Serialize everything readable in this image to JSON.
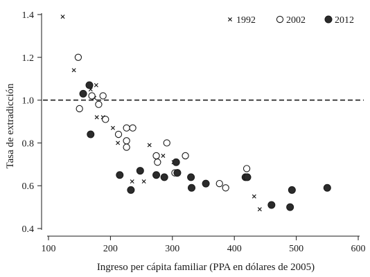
{
  "chart_data": {
    "type": "scatter",
    "xlabel": "Ingreso per cápita familiar (PPA en dólares de 2005)",
    "ylabel": "Tasa de extradicción",
    "xlim": [
      100,
      600
    ],
    "ylim": [
      0.4,
      1.4
    ],
    "xticks": [
      "100",
      "200",
      "300",
      "400",
      "500",
      "600"
    ],
    "yticks": [
      "0.4",
      "0.6",
      "0.8",
      "1.0",
      "1.2",
      "1.4"
    ],
    "reference_line": {
      "y": 1.0,
      "style": "dashed"
    },
    "legend_position": "top-right",
    "grid": false,
    "series": [
      {
        "name": "1992",
        "marker": "x",
        "points": [
          [
            123,
            1.39
          ],
          [
            141,
            1.14
          ],
          [
            168,
            1.05
          ],
          [
            177,
            1.07
          ],
          [
            174,
            1.01
          ],
          [
            178,
            0.92
          ],
          [
            188,
            0.92
          ],
          [
            204,
            0.87
          ],
          [
            212,
            0.8
          ],
          [
            235,
            0.62
          ],
          [
            254,
            0.62
          ],
          [
            263,
            0.79
          ],
          [
            285,
            0.74
          ],
          [
            302,
            0.71
          ],
          [
            432,
            0.55
          ],
          [
            441,
            0.49
          ]
        ]
      },
      {
        "name": "2002",
        "marker": "open-circle",
        "points": [
          [
            148,
            1.2
          ],
          [
            150,
            0.96
          ],
          [
            170,
            1.02
          ],
          [
            181,
            0.98
          ],
          [
            188,
            1.02
          ],
          [
            192,
            0.91
          ],
          [
            213,
            0.84
          ],
          [
            226,
            0.87
          ],
          [
            226,
            0.81
          ],
          [
            226,
            0.78
          ],
          [
            236,
            0.87
          ],
          [
            274,
            0.74
          ],
          [
            276,
            0.71
          ],
          [
            291,
            0.8
          ],
          [
            304,
            0.66
          ],
          [
            321,
            0.74
          ],
          [
            376,
            0.61
          ],
          [
            386,
            0.59
          ],
          [
            420,
            0.68
          ]
        ]
      },
      {
        "name": "2012",
        "marker": "filled-circle",
        "points": [
          [
            156,
            1.03
          ],
          [
            166,
            1.07
          ],
          [
            168,
            0.84
          ],
          [
            215,
            0.65
          ],
          [
            233,
            0.58
          ],
          [
            248,
            0.67
          ],
          [
            274,
            0.65
          ],
          [
            287,
            0.64
          ],
          [
            306,
            0.71
          ],
          [
            308,
            0.66
          ],
          [
            330,
            0.64
          ],
          [
            331,
            0.59
          ],
          [
            354,
            0.61
          ],
          [
            418,
            0.64
          ],
          [
            421,
            0.64
          ],
          [
            460,
            0.51
          ],
          [
            490,
            0.5
          ],
          [
            493,
            0.58
          ],
          [
            550,
            0.59
          ]
        ]
      }
    ]
  }
}
